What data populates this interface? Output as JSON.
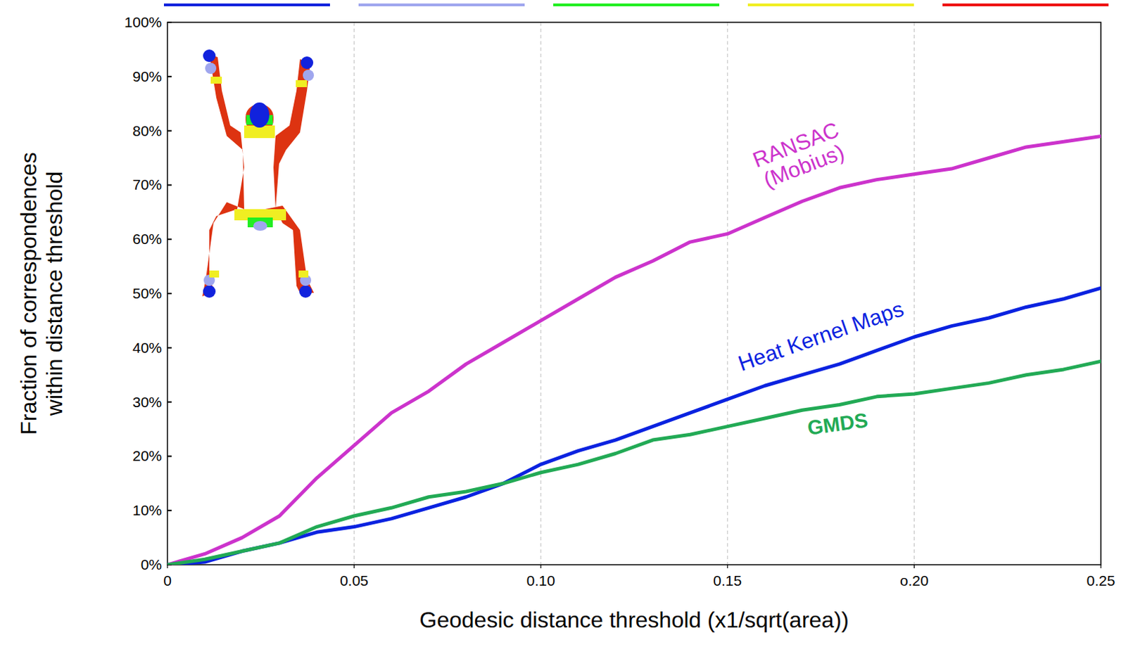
{
  "chart_data": {
    "type": "line",
    "xlabel": "Geodesic distance threshold (x1/sqrt(area))",
    "ylabel": [
      "Fraction of correspondences",
      "within distance threshold"
    ],
    "x": [
      0,
      0.01,
      0.02,
      0.03,
      0.04,
      0.05,
      0.06,
      0.07,
      0.08,
      0.09,
      0.1,
      0.11,
      0.12,
      0.13,
      0.14,
      0.15,
      0.16,
      0.17,
      0.18,
      0.19,
      0.2,
      0.21,
      0.22,
      0.23,
      0.24,
      0.25
    ],
    "series": [
      {
        "name": "RANSAC (Mobius)",
        "color": "#cc33cc",
        "values": [
          0,
          2,
          5,
          9,
          16,
          22,
          28,
          32,
          37,
          41,
          45,
          49,
          53,
          56,
          59.5,
          61,
          64,
          67,
          69.5,
          71,
          72,
          73,
          75,
          77,
          78,
          79
        ]
      },
      {
        "name": "Heat Kernel Maps",
        "color": "#0a22e0",
        "values": [
          0,
          0.5,
          2.5,
          4,
          6,
          7,
          8.5,
          10.5,
          12.5,
          15,
          18.5,
          21,
          23,
          25.5,
          28,
          30.5,
          33,
          35,
          37,
          39.5,
          42,
          44,
          45.5,
          47.5,
          49,
          51
        ]
      },
      {
        "name": "GMDS",
        "color": "#22aa55",
        "values": [
          0,
          1,
          2.5,
          4,
          7,
          9,
          10.5,
          12.5,
          13.5,
          15,
          17,
          18.5,
          20.5,
          23,
          24,
          25.5,
          27,
          28.5,
          29.5,
          31,
          31.5,
          32.5,
          33.5,
          35,
          36,
          37.5
        ]
      }
    ],
    "xlim": [
      0,
      0.25
    ],
    "xticks": [
      0,
      0.05,
      {
        "value": 0.1,
        "label": "0.10"
      },
      0.15,
      {
        "value": 0.2,
        "label": "o.20"
      },
      0.25
    ],
    "ylim": [
      0,
      100
    ],
    "yticks": [
      {
        "value": 0,
        "label": "0%"
      },
      {
        "value": 10,
        "label": "10%"
      },
      {
        "value": 20,
        "label": "20%"
      },
      {
        "value": 30,
        "label": "30%"
      },
      {
        "value": 40,
        "label": "40%"
      },
      {
        "value": 50,
        "label": "50%"
      },
      {
        "value": 60,
        "label": "60%"
      },
      {
        "value": 70,
        "label": "70%"
      },
      {
        "value": 80,
        "label": "80%"
      },
      {
        "value": 90,
        "label": "90%"
      },
      {
        "value": 100,
        "label": "100%"
      }
    ],
    "grid": "x"
  }
}
